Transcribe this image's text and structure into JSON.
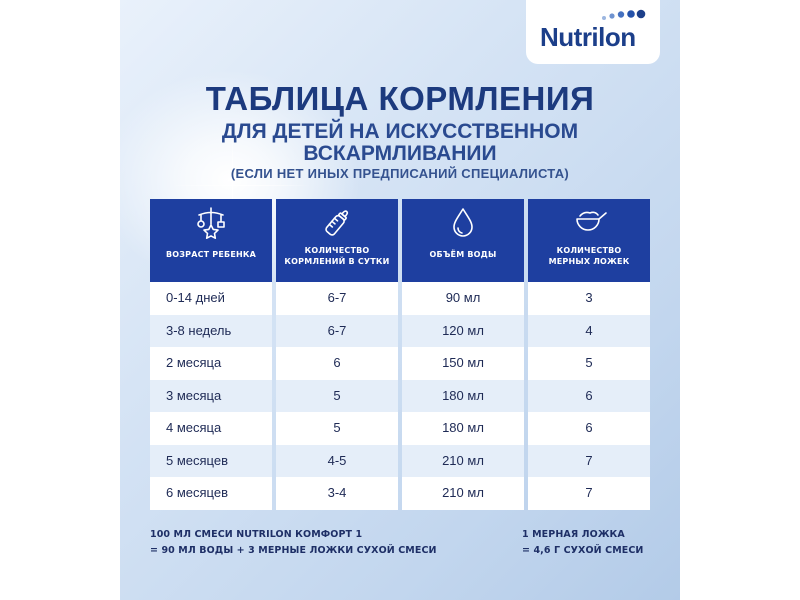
{
  "brand": {
    "logo_text": "Nutrilon"
  },
  "title": "ТАБЛИЦА КОРМЛЕНИЯ",
  "subtitle_line1": "ДЛЯ ДЕТЕЙ НА ИСКУССТВЕННОМ",
  "subtitle_line2": "ВСКАРМЛИВАНИИ",
  "note_top": "(ЕСЛИ НЕТ ИНЫХ ПРЕДПИСАНИЙ СПЕЦИАЛИСТА)",
  "colors": {
    "primary": "#1e3fa0",
    "text_dark": "#1c3a7e",
    "row_alt": "#e5eef9"
  },
  "table": {
    "headers": [
      {
        "icon": "baby-mobile-icon",
        "line1": "ВОЗРАСТ РЕБЕНКА",
        "line2": ""
      },
      {
        "icon": "baby-bottle-icon",
        "line1": "КОЛИЧЕСТВО",
        "line2": "КОРМЛЕНИЙ В СУТКИ"
      },
      {
        "icon": "water-drop-icon",
        "line1": "ОБЪЁМ ВОДЫ",
        "line2": ""
      },
      {
        "icon": "measuring-spoon-icon",
        "line1": "КОЛИЧЕСТВО",
        "line2": "МЕРНЫХ ЛОЖЕК"
      }
    ],
    "rows": [
      [
        "0-14 дней",
        "6-7",
        "90 мл",
        "3"
      ],
      [
        "3-8 недель",
        "6-7",
        "120 мл",
        "4"
      ],
      [
        "2 месяца",
        "6",
        "150 мл",
        "5"
      ],
      [
        "3 месяца",
        "5",
        "180 мл",
        "6"
      ],
      [
        "4 месяца",
        "5",
        "180 мл",
        "6"
      ],
      [
        "5 месяцев",
        "4-5",
        "210 мл",
        "7"
      ],
      [
        "6 месяцев",
        "3-4",
        "210 мл",
        "7"
      ]
    ]
  },
  "footer": {
    "left_line1": "100 МЛ СМЕСИ NUTRILON КОМФОРТ 1",
    "left_line2": "= 90 МЛ ВОДЫ + 3 МЕРНЫЕ ЛОЖКИ СУХОЙ СМЕСИ",
    "right_line1": "1 МЕРНАЯ ЛОЖКА",
    "right_line2": "= 4,6 Г СУХОЙ СМЕСИ"
  }
}
